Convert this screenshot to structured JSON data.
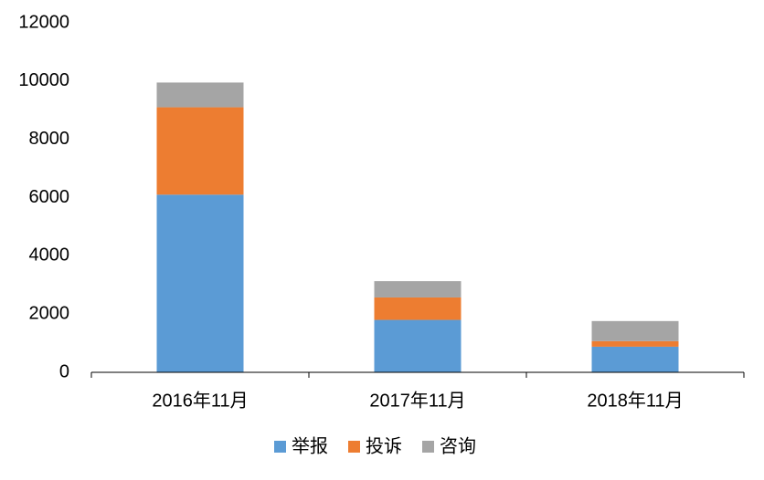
{
  "chart_data": {
    "type": "stacked_bar",
    "categories": [
      "2016年11月",
      "2017年11月",
      "2018年11月"
    ],
    "series": [
      {
        "name": "举报",
        "color": "#5b9bd5",
        "values": [
          6100,
          1800,
          880
        ]
      },
      {
        "name": "投诉",
        "color": "#ed7d31",
        "values": [
          3000,
          770,
          190
        ]
      },
      {
        "name": "咨询",
        "color": "#a5a5a5",
        "values": [
          850,
          560,
          690
        ]
      }
    ],
    "ylim": [
      0,
      12000
    ],
    "yticks": [
      0,
      2000,
      4000,
      6000,
      8000,
      10000,
      12000
    ],
    "legend": "bottom"
  }
}
